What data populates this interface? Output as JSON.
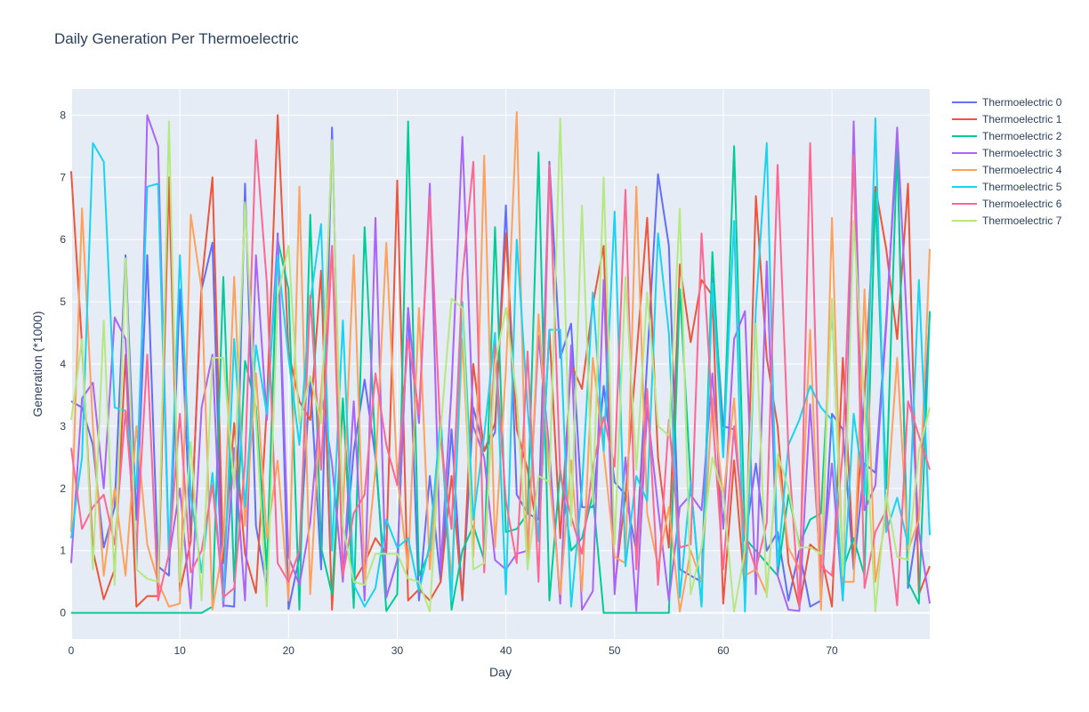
{
  "colors": [
    "#636efa",
    "#EF553B",
    "#00cc96",
    "#ab63fa",
    "#FFA15A",
    "#19d3f3",
    "#FF6692",
    "#B6E880"
  ],
  "chart_data": {
    "type": "line",
    "title": "Daily Generation Per Thermoelectric",
    "xlabel": "Day",
    "ylabel": "Generation (*1000)",
    "xlim": [
      0,
      79
    ],
    "ylim": [
      -0.42,
      8.42
    ],
    "xticks": [
      0,
      10,
      20,
      30,
      40,
      50,
      60,
      70
    ],
    "yticks": [
      0,
      1,
      2,
      3,
      4,
      5,
      6,
      7,
      8
    ],
    "grid": true,
    "legend_position": "right",
    "x": [
      0,
      1,
      2,
      3,
      4,
      5,
      6,
      7,
      8,
      9,
      10,
      11,
      12,
      13,
      14,
      15,
      16,
      17,
      18,
      19,
      20,
      21,
      22,
      23,
      24,
      25,
      26,
      27,
      28,
      29,
      30,
      31,
      32,
      33,
      34,
      35,
      36,
      37,
      38,
      39,
      40,
      41,
      42,
      43,
      44,
      45,
      46,
      47,
      48,
      49,
      50,
      51,
      52,
      53,
      54,
      55,
      56,
      57,
      58,
      59,
      60,
      61,
      62,
      63,
      64,
      65,
      66,
      67,
      68,
      69,
      70,
      71,
      72,
      73,
      74,
      75,
      76,
      77,
      78,
      79
    ],
    "series": [
      {
        "name": "Thermoelectric 0",
        "values": [
          3.4,
          3.3,
          2.7,
          1.05,
          1.7,
          5.75,
          1.5,
          5.75,
          0.75,
          0.6,
          5.2,
          1.2,
          5.2,
          5.95,
          0.12,
          0.1,
          6.9,
          1.4,
          0.4,
          6.1,
          0.06,
          0.9,
          3.8,
          0.7,
          7.8,
          0.6,
          2.6,
          3.75,
          2.5,
          0.25,
          0.85,
          4.9,
          0.2,
          2.2,
          0.5,
          2.95,
          0.2,
          3.3,
          2.6,
          2.9,
          6.55,
          1.9,
          1.6,
          1.5,
          7.25,
          4.1,
          4.65,
          1.7,
          1.7,
          3.65,
          2.1,
          1.9,
          1.0,
          4.05,
          7.05,
          5.9,
          0.7,
          0.6,
          0.5,
          5.4,
          3.0,
          2.95,
          1.15,
          2.4,
          1.0,
          1.3,
          0.2,
          1.0,
          0.1,
          0.2,
          3.2,
          2.95,
          0.7,
          2.4,
          2.25,
          4.7,
          7.6,
          0.4,
          1.55,
          4.8
        ]
      },
      {
        "name": "Thermoelectric 1",
        "values": [
          7.1,
          4.3,
          1.0,
          0.22,
          0.7,
          4.15,
          0.1,
          0.27,
          0.27,
          7.0,
          0.35,
          1.15,
          5.3,
          7.0,
          0.8,
          3.05,
          0.95,
          0.32,
          3.3,
          8.0,
          4.2,
          3.4,
          3.1,
          5.5,
          0.05,
          3.4,
          0.5,
          0.8,
          1.2,
          0.95,
          6.95,
          0.2,
          0.38,
          0.2,
          0.5,
          2.2,
          0.22,
          4.0,
          2.6,
          3.05,
          6.1,
          2.95,
          2.3,
          1.2,
          4.55,
          1.2,
          4.0,
          3.6,
          4.95,
          5.9,
          0.4,
          1.9,
          4.1,
          6.35,
          2.5,
          1.05,
          5.6,
          4.35,
          5.35,
          5.1,
          0.15,
          2.45,
          0.35,
          6.7,
          4.1,
          3.0,
          0.8,
          0.1,
          1.1,
          0.95,
          0.1,
          4.1,
          0.8,
          3.5,
          6.85,
          5.85,
          4.4,
          6.9,
          0.3,
          0.75
        ]
      },
      {
        "name": "Thermoelectric 2",
        "values": [
          0,
          0,
          0,
          0,
          0,
          0,
          0,
          0,
          0,
          0,
          0,
          0,
          0,
          0.1,
          5.4,
          0.5,
          4.05,
          3.3,
          0.7,
          6.0,
          5.2,
          0.05,
          6.4,
          1.05,
          0.3,
          3.45,
          0.08,
          6.2,
          2.6,
          0.03,
          0.3,
          7.9,
          0.6,
          1.0,
          3.15,
          0.05,
          1.0,
          1.4,
          0.85,
          6.2,
          1.3,
          1.35,
          1.6,
          7.4,
          0.2,
          2.3,
          1.0,
          1.2,
          1.9,
          0,
          0,
          0,
          0,
          0,
          0,
          0,
          5.2,
          2.1,
          0.1,
          5.8,
          2.6,
          7.5,
          1.2,
          1.0,
          0.8,
          0.6,
          1.9,
          1.1,
          1.5,
          1.6,
          4.95,
          0.7,
          1.2,
          0.6,
          6.75,
          2.0,
          7.5,
          0.5,
          0.15,
          4.85
        ]
      },
      {
        "name": "Thermoelectric 3",
        "values": [
          0.8,
          3.45,
          3.7,
          2.0,
          4.75,
          4.4,
          0.7,
          8.0,
          7.5,
          0.9,
          2.0,
          0.07,
          3.3,
          4.15,
          0.1,
          2.65,
          0.2,
          5.75,
          3.1,
          6.05,
          0.9,
          0.45,
          1.45,
          3.55,
          2.4,
          0.5,
          3.4,
          0.2,
          6.35,
          0.25,
          0.85,
          4.9,
          3.05,
          6.9,
          0.7,
          3.6,
          7.65,
          3.0,
          2.5,
          0.85,
          0.7,
          0.95,
          1.0,
          4.45,
          2.6,
          0.15,
          4.3,
          0.05,
          0.35,
          5.35,
          0.3,
          2.5,
          0.03,
          3.3,
          1.7,
          0.2,
          1.7,
          1.9,
          1.65,
          3.85,
          1.35,
          4.4,
          4.85,
          0.3,
          5.65,
          0.6,
          0.05,
          0.03,
          3.35,
          0.5,
          2.4,
          0.2,
          7.9,
          1.65,
          2.05,
          4.6,
          7.8,
          4.3,
          1.3,
          0.15
        ]
      },
      {
        "name": "Thermoelectric 4",
        "values": [
          1.3,
          6.5,
          3.0,
          0.6,
          2.0,
          0.6,
          3.0,
          1.1,
          0.5,
          0.1,
          0.15,
          6.4,
          5.2,
          0.05,
          1.1,
          5.4,
          1.4,
          3.85,
          1.2,
          2.45,
          0.2,
          6.85,
          0.3,
          3.55,
          5.9,
          1.6,
          5.75,
          0.5,
          2.3,
          5.95,
          2.2,
          0.7,
          4.9,
          0.7,
          2.9,
          0.5,
          4.4,
          0.9,
          7.35,
          1.05,
          3.9,
          8.05,
          0.7,
          4.8,
          2.2,
          0.3,
          2.45,
          0.35,
          4.1,
          2.6,
          0.9,
          0.8,
          6.85,
          1.6,
          0.75,
          1.7,
          0.02,
          1.0,
          0.5,
          3.45,
          1.85,
          3.45,
          0.6,
          0.7,
          0.3,
          2.5,
          1.05,
          0.7,
          4.55,
          0.05,
          6.35,
          0.5,
          0.5,
          5.2,
          0.5,
          1.6,
          4.1,
          1.0,
          1.5,
          5.85
        ]
      },
      {
        "name": "Thermoelectric 5",
        "values": [
          1.2,
          2.5,
          7.55,
          7.25,
          3.3,
          3.25,
          2.0,
          6.85,
          6.9,
          0.9,
          5.75,
          1.9,
          0.65,
          2.25,
          0.2,
          4.4,
          1.7,
          4.3,
          3.2,
          5.75,
          4.1,
          2.7,
          5.0,
          6.25,
          1.0,
          4.7,
          0.45,
          0.1,
          0.4,
          1.5,
          1.05,
          1.2,
          0.35,
          1.1,
          3.15,
          0.2,
          5.0,
          1.5,
          2.85,
          4.5,
          0.3,
          6.0,
          3.3,
          1.15,
          4.55,
          4.55,
          0.1,
          2.0,
          5.15,
          2.6,
          6.45,
          0.75,
          2.2,
          1.8,
          6.1,
          4.5,
          0.25,
          2.1,
          0.1,
          5.3,
          2.5,
          6.3,
          0.02,
          4.9,
          7.55,
          0.75,
          2.7,
          3.1,
          3.65,
          3.3,
          3.1,
          0.2,
          3.2,
          1.9,
          7.95,
          1.3,
          1.85,
          1.1,
          5.35,
          1.25
        ]
      },
      {
        "name": "Thermoelectric 6",
        "values": [
          2.65,
          1.35,
          1.7,
          1.9,
          1.1,
          3.25,
          1.05,
          4.15,
          0.2,
          0.95,
          3.2,
          0.65,
          1.0,
          2.05,
          0.25,
          0.4,
          2.4,
          7.6,
          5.3,
          0.8,
          0.5,
          1.0,
          5.1,
          2.3,
          5.9,
          0.6,
          1.6,
          1.9,
          3.85,
          2.7,
          2.05,
          4.4,
          3.2,
          6.7,
          2.8,
          1.35,
          5.4,
          7.25,
          0.65,
          4.3,
          1.8,
          0.8,
          4.2,
          0.5,
          7.2,
          2.2,
          1.55,
          0.95,
          2.35,
          3.15,
          2.35,
          6.8,
          0.7,
          3.6,
          0.45,
          3.1,
          1.05,
          1.1,
          6.1,
          3.2,
          0.7,
          3.0,
          1.25,
          0.7,
          1.45,
          7.2,
          2.6,
          0.1,
          7.55,
          0.75,
          0.6,
          2.6,
          7.35,
          0.4,
          1.3,
          1.65,
          0.12,
          3.4,
          2.85,
          2.3
        ]
      },
      {
        "name": "Thermoelectric 7",
        "values": [
          3.1,
          4.4,
          0.7,
          4.7,
          0.45,
          5.7,
          0.7,
          0.55,
          0.5,
          7.9,
          0.5,
          2.75,
          0.2,
          4.1,
          4.1,
          2.0,
          6.6,
          3.1,
          0.1,
          5.1,
          5.9,
          3.05,
          3.8,
          3.05,
          7.6,
          1.4,
          0.5,
          0.45,
          0.95,
          0.95,
          0.95,
          0.55,
          0.5,
          0.02,
          2.95,
          5.05,
          4.9,
          0.7,
          0.8,
          4.0,
          4.9,
          3.45,
          0.7,
          2.2,
          2.1,
          7.95,
          1.4,
          6.55,
          1.75,
          7.0,
          1.1,
          5.4,
          2.3,
          5.15,
          3.0,
          2.85,
          6.5,
          0.3,
          1.05,
          2.5,
          1.9,
          0.02,
          1.0,
          4.65,
          0.25,
          2.55,
          2.0,
          1.05,
          1.05,
          0.95,
          5.05,
          0.6,
          6.3,
          3.3,
          0.02,
          1.9,
          0.9,
          0.85,
          2.6,
          3.3
        ]
      }
    ]
  }
}
